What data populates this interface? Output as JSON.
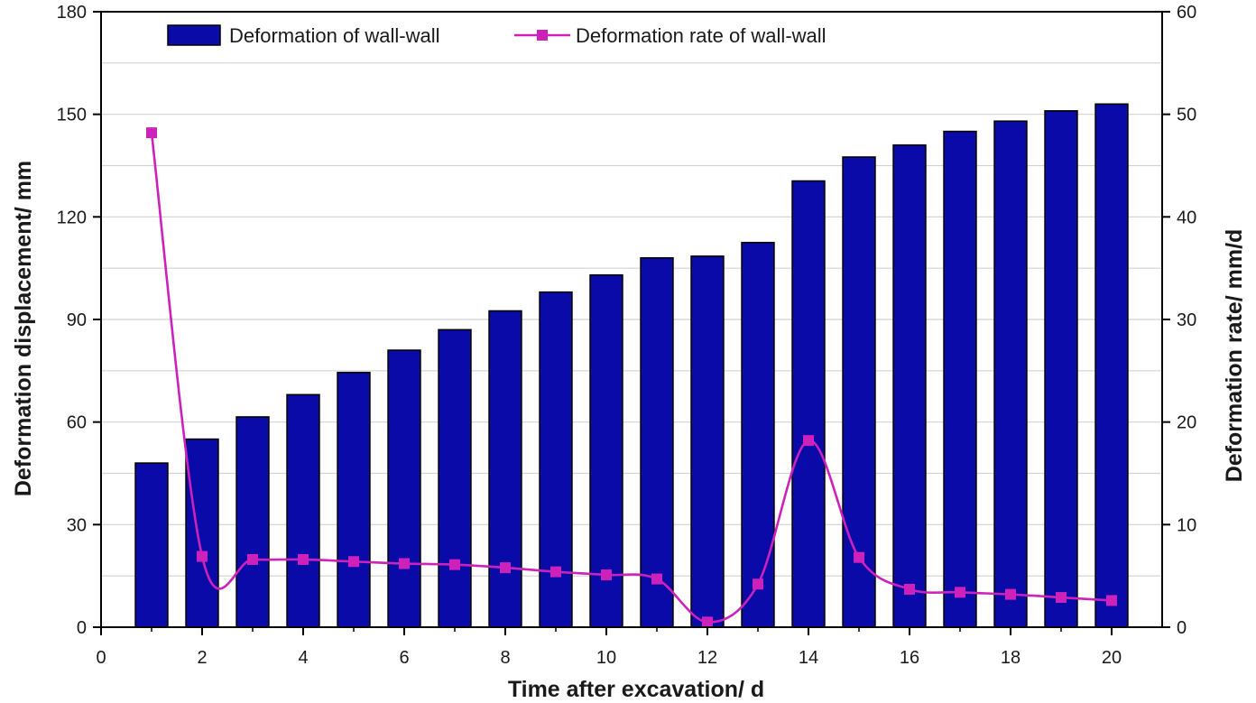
{
  "chart_data": {
    "type": "bar",
    "xlabel": "Time after excavation/ d",
    "ylabel": "Deformation displacement/ mm",
    "y2label": "Deformation rate/ mm/d",
    "xlim": [
      0,
      21
    ],
    "ylim": [
      0,
      180
    ],
    "y2lim": [
      0,
      60
    ],
    "x_ticks": [
      0,
      2,
      4,
      6,
      8,
      10,
      12,
      14,
      16,
      18,
      20
    ],
    "y_ticks": [
      0,
      30,
      60,
      90,
      120,
      150,
      180
    ],
    "y2_ticks": [
      0,
      10,
      20,
      30,
      40,
      50,
      60
    ],
    "grid": true,
    "legend_position": "top",
    "x": [
      1,
      2,
      3,
      4,
      5,
      6,
      7,
      8,
      9,
      10,
      11,
      12,
      13,
      14,
      15,
      16,
      17,
      18,
      19,
      20
    ],
    "series": [
      {
        "name": "Deformation of wall-wall",
        "type": "bar",
        "axis": "left",
        "color": "#0a0aa8",
        "values": [
          48,
          55,
          61.5,
          68,
          74.5,
          81,
          87,
          92.5,
          98,
          103,
          108,
          108.5,
          112.5,
          130.5,
          137.5,
          141,
          145,
          148,
          151,
          153
        ]
      },
      {
        "name": "Deformation rate of wall-wall",
        "type": "line",
        "axis": "right",
        "color": "#cc22bb",
        "values": [
          48.2,
          6.9,
          6.6,
          6.6,
          6.4,
          6.2,
          6.1,
          5.8,
          5.4,
          5.1,
          4.7,
          0.5,
          4.2,
          18.2,
          6.8,
          3.7,
          3.4,
          3.2,
          2.9,
          2.6
        ]
      }
    ]
  }
}
